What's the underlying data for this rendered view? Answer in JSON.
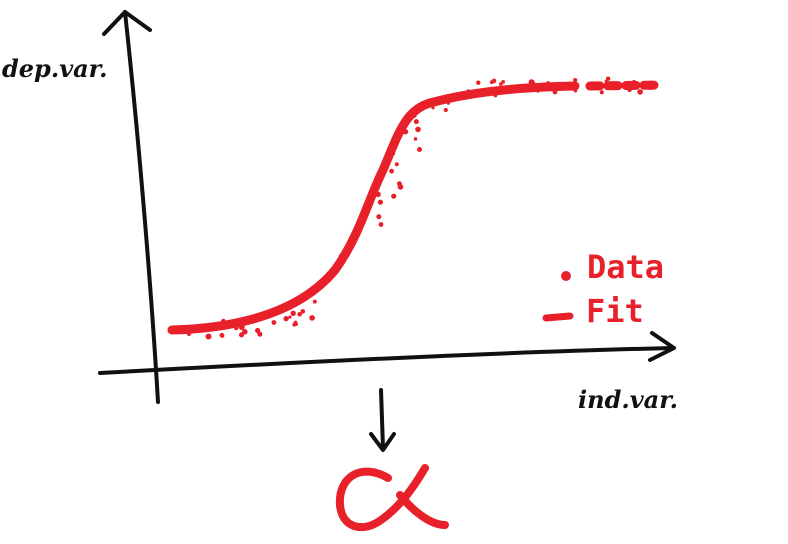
{
  "axes": {
    "y_label": "dep.var.",
    "x_label": "ind.var."
  },
  "legend": {
    "data_label": "Data",
    "fit_label": "Fit"
  },
  "colors": {
    "ink": "#111111",
    "accent": "#e8202a"
  },
  "icons": {
    "result_symbol": "alpha-symbol-icon",
    "down_arrow": "down-arrow-icon"
  }
}
